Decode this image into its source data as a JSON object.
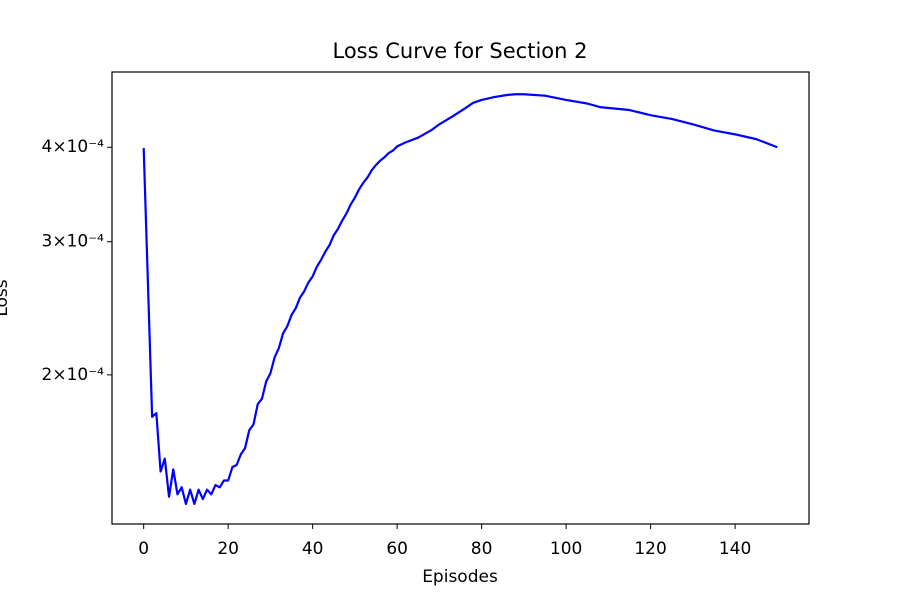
{
  "chart_data": {
    "type": "line",
    "title": "Loss Curve for Section 2",
    "x_label": "Episodes",
    "y_label": "Loss",
    "log_y": true,
    "grid": false,
    "x": [
      0,
      1,
      2,
      3,
      4,
      5,
      6,
      7,
      8,
      9,
      10,
      11,
      12,
      13,
      14,
      15,
      16,
      17,
      18,
      19,
      20,
      21,
      22,
      23,
      24,
      25,
      26,
      27,
      28,
      29,
      30,
      31,
      32,
      33,
      34,
      35,
      36,
      37,
      38,
      39,
      40,
      41,
      42,
      43,
      44,
      45,
      46,
      47,
      48,
      49,
      50,
      51,
      52,
      53,
      54,
      55,
      56,
      57,
      58,
      59,
      60,
      62,
      65,
      68,
      70,
      73,
      76,
      78,
      80,
      83,
      86,
      88,
      90,
      95,
      100,
      105,
      108,
      115,
      120,
      125,
      130,
      135,
      140,
      145,
      150
    ],
    "series": [
      {
        "name": "Loss",
        "color": "#0000ff",
        "values": [
          0.000399,
          0.000265,
          0.000176,
          0.000178,
          0.000149,
          0.000155,
          0.000138,
          0.00015,
          0.000139,
          0.000142,
          0.000135,
          0.000141,
          0.000135,
          0.000141,
          0.000137,
          0.000141,
          0.000139,
          0.000143,
          0.000142,
          0.000145,
          0.000145,
          0.000151,
          0.000152,
          0.000157,
          0.00016,
          0.000169,
          0.000172,
          0.000183,
          0.000186,
          0.000196,
          0.000201,
          0.000211,
          0.000217,
          0.000227,
          0.000232,
          0.00024,
          0.000245,
          0.000253,
          0.000258,
          0.000265,
          0.00027,
          0.000278,
          0.000284,
          0.000291,
          0.000297,
          0.000306,
          0.000312,
          0.00032,
          0.000327,
          0.000336,
          0.000343,
          0.000352,
          0.000359,
          0.000365,
          0.000373,
          0.000379,
          0.000384,
          0.000388,
          0.000393,
          0.000396,
          0.000401,
          0.000406,
          0.000412,
          0.000421,
          0.000429,
          0.000439,
          0.00045,
          0.000458,
          0.000462,
          0.000466,
          0.000469,
          0.00047,
          0.00047,
          0.000468,
          0.000462,
          0.000457,
          0.000452,
          0.000448,
          0.000441,
          0.000436,
          0.000429,
          0.000421,
          0.000416,
          0.00041,
          0.0004
        ]
      }
    ],
    "xlim": [
      -7.5,
      157.5
    ],
    "xticks": [
      0,
      20,
      40,
      60,
      80,
      100,
      120,
      140
    ],
    "ylim": [
      0.000127,
      0.000503
    ],
    "yticks": [
      {
        "value": 0.0002,
        "label": "2×10⁻⁴"
      },
      {
        "value": 0.0003,
        "label": "3×10⁻⁴"
      },
      {
        "value": 0.0004,
        "label": "4×10⁻⁴"
      }
    ]
  }
}
